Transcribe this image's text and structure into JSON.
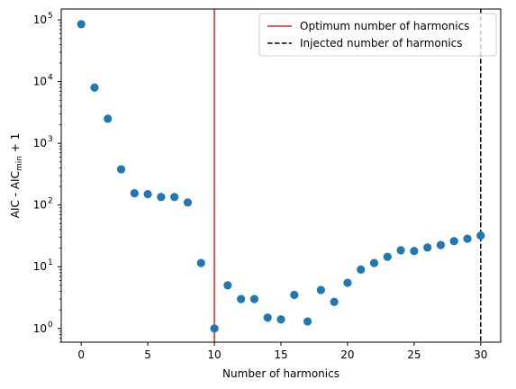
{
  "chart_data": {
    "type": "scatter",
    "xlabel": "Number of harmonics",
    "ylabel_main": "AIC - AIC",
    "ylabel_sub": "min",
    "ylabel_tail": " + 1",
    "xlim": [
      -1.5,
      31.5
    ],
    "ylim": [
      0.6,
      150000
    ],
    "yscale": "log",
    "x_ticks": [
      0,
      5,
      10,
      15,
      20,
      25,
      30
    ],
    "x_tick_labels": [
      "0",
      "5",
      "10",
      "15",
      "20",
      "25",
      "30"
    ],
    "y_ticks": [
      1,
      10,
      100,
      1000,
      10000,
      100000
    ],
    "y_tick_base": "10",
    "y_tick_exponents": [
      "0",
      "1",
      "2",
      "3",
      "4",
      "5"
    ],
    "grid": false,
    "legend_placement": "top-right",
    "series": [
      {
        "x": [
          0,
          1,
          2,
          3,
          4,
          5,
          6,
          7,
          8,
          9,
          10,
          11,
          12,
          13,
          14,
          15,
          16,
          17,
          18,
          19,
          20,
          21,
          22,
          23,
          24,
          25,
          26,
          27,
          28,
          29,
          30
        ],
        "y": [
          85000,
          8000,
          2500,
          380,
          155,
          150,
          135,
          135,
          110,
          11.5,
          1.0,
          5.0,
          3.0,
          3.0,
          1.5,
          1.4,
          3.5,
          1.3,
          4.2,
          2.7,
          5.5,
          9.0,
          11.5,
          14.5,
          18.5,
          18.0,
          20.5,
          22.5,
          26.0,
          28.5,
          32.0
        ],
        "color": "#1f77b4"
      }
    ],
    "vlines": [
      {
        "name": "Optimum number of harmonics",
        "x": 10,
        "color": "#d62728",
        "style": "solid"
      },
      {
        "name": "Injected number of harmonics",
        "x": 30,
        "color": "#000000",
        "style": "dashed"
      }
    ]
  }
}
